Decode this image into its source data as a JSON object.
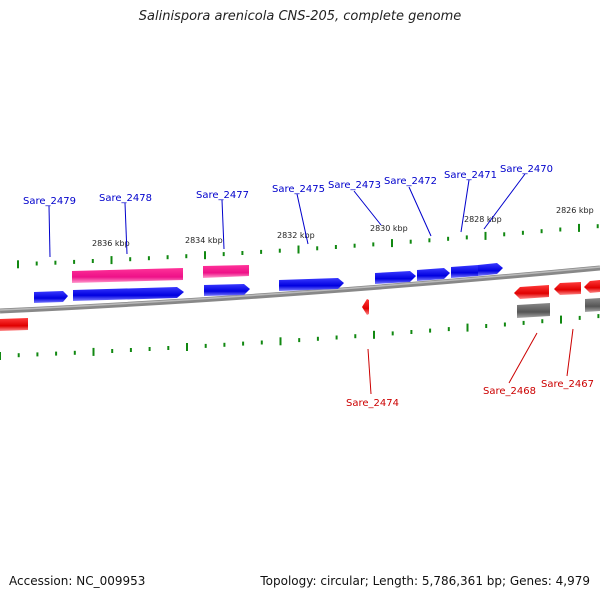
{
  "title": "Salinispora arenicola CNS-205, complete genome",
  "footer": {
    "accession": "Accession: NC_009953",
    "summary": "Topology: circular; Length: 5,786,361 bp; Genes: 4,979"
  },
  "colors": {
    "forward_gene": "#0000ee",
    "reverse_gene": "#ee0000",
    "forward_label": "#0000cc",
    "reverse_label": "#cc0000",
    "rna": "#ee1188",
    "pseudo": "#666666",
    "backbone": "#777777",
    "tick": "#118811"
  },
  "ruler_labels": [
    "2836 kbp",
    "2834 kbp",
    "2832 kbp",
    "2830 kbp",
    "2828 kbp",
    "2826 kbp"
  ],
  "forward_genes": [
    "Sare_2479",
    "Sare_2478",
    "Sare_2477",
    "Sare_2475",
    "Sare_2473",
    "Sare_2472",
    "Sare_2471",
    "Sare_2470"
  ],
  "reverse_genes": [
    "Sare_2474",
    "Sare_2468",
    "Sare_2467"
  ]
}
